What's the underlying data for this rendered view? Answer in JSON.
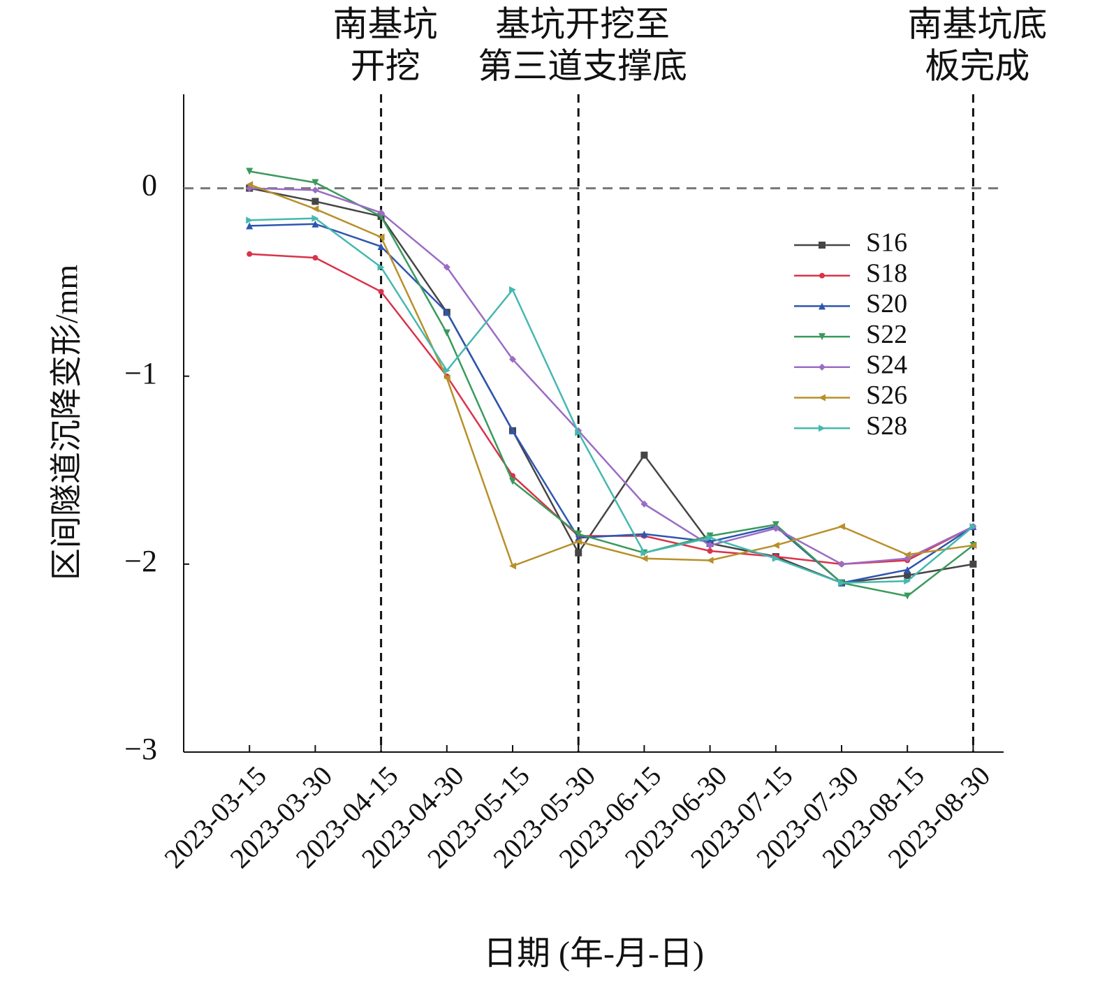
{
  "chart_data": {
    "type": "line",
    "x_label": "日期 (年-月-日)",
    "y_label": "区间隧道沉降变形/mm",
    "categories": [
      "2023-03-15",
      "2023-03-30",
      "2023-04-15",
      "2023-04-30",
      "2023-05-15",
      "2023-05-30",
      "2023-06-15",
      "2023-06-30",
      "2023-07-15",
      "2023-07-30",
      "2023-08-15",
      "2023-08-30"
    ],
    "ylim": [
      -3,
      0.5
    ],
    "yticks": [
      {
        "value": -3,
        "label": "−3"
      },
      {
        "value": -2,
        "label": "−2"
      },
      {
        "value": -1,
        "label": "−1"
      },
      0
    ],
    "reference_y": 0,
    "legend": "upper right",
    "annotations": [
      {
        "category": "2023-04-15",
        "lines": [
          "南基坑",
          "开挖"
        ]
      },
      {
        "category": "2023-05-30",
        "lines": [
          "基坑开挖至",
          "第三道支撑底"
        ]
      },
      {
        "category": "2023-08-30",
        "lines": [
          "南基坑底",
          "板完成"
        ]
      }
    ],
    "series": [
      {
        "name": "S16",
        "color": "#454545",
        "marker": "square",
        "values": [
          0,
          -0.07,
          -0.15,
          -0.66,
          -1.29,
          -1.94,
          -1.42,
          -1.89,
          -1.96,
          -2.1,
          -2.06,
          -2.0
        ]
      },
      {
        "name": "S18",
        "color": "#d9334a",
        "marker": "circle",
        "values": [
          -0.35,
          -0.37,
          -0.55,
          -1.0,
          -1.53,
          -1.85,
          -1.85,
          -1.93,
          -1.96,
          -2.0,
          -1.98,
          -1.8
        ]
      },
      {
        "name": "S20",
        "color": "#2e56b0",
        "marker": "triangle-up",
        "values": [
          -0.2,
          -0.19,
          -0.31,
          -0.66,
          -1.29,
          -1.86,
          -1.84,
          -1.88,
          -1.8,
          -2.1,
          -2.03,
          -1.8
        ]
      },
      {
        "name": "S22",
        "color": "#3a9a5c",
        "marker": "triangle-down",
        "values": [
          0.09,
          0.03,
          -0.15,
          -0.77,
          -1.56,
          -1.84,
          -1.94,
          -1.85,
          -1.79,
          -2.1,
          -2.17,
          -1.9
        ]
      },
      {
        "name": "S24",
        "color": "#9b6cc4",
        "marker": "diamond",
        "values": [
          0,
          -0.01,
          -0.13,
          -0.42,
          -0.91,
          -1.29,
          -1.68,
          -1.9,
          -1.81,
          -2.0,
          -1.97,
          -1.8
        ]
      },
      {
        "name": "S26",
        "color": "#b8902a",
        "marker": "triangle-left",
        "values": [
          0.02,
          -0.11,
          -0.26,
          -1.01,
          -2.01,
          -1.88,
          -1.97,
          -1.98,
          -1.9,
          -1.8,
          -1.95,
          -1.9
        ]
      },
      {
        "name": "S28",
        "color": "#45b8b0",
        "marker": "triangle-right",
        "values": [
          -0.17,
          -0.16,
          -0.42,
          -0.97,
          -0.54,
          -1.3,
          -1.94,
          -1.86,
          -1.97,
          -2.1,
          -2.09,
          -1.8
        ]
      }
    ]
  }
}
